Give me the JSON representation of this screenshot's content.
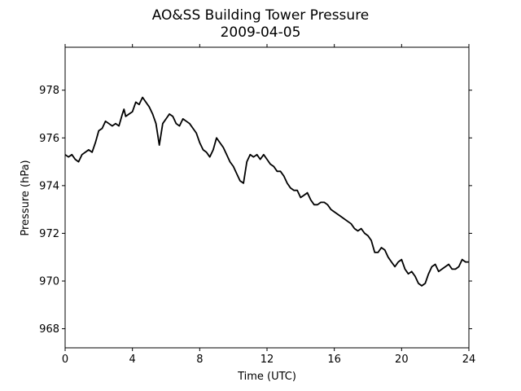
{
  "chart_data": {
    "type": "line",
    "title": [
      "AO&SS Building Tower Pressure",
      "2009-04-05"
    ],
    "xlabel": "Time (UTC)",
    "ylabel": "Pressure (hPa)",
    "xlim": [
      0,
      24
    ],
    "ylim": [
      967.2,
      979.8
    ],
    "xticks": [
      0,
      4,
      8,
      12,
      16,
      20,
      24
    ],
    "yticks": [
      968,
      970,
      972,
      974,
      976,
      978
    ],
    "grid": false,
    "line_color": "#000000",
    "series": [
      {
        "x": [
          0,
          0.2,
          0.4,
          0.6,
          0.8,
          1.0,
          1.2,
          1.4,
          1.6,
          1.8,
          2.0,
          2.2,
          2.4,
          2.6,
          2.8,
          3.0,
          3.2,
          3.4,
          3.5,
          3.6,
          3.8,
          4.0,
          4.2,
          4.4,
          4.6,
          4.8,
          5.0,
          5.2,
          5.4,
          5.6,
          5.8,
          6.0,
          6.2,
          6.4,
          6.6,
          6.8,
          7.0,
          7.2,
          7.4,
          7.6,
          7.8,
          8.0,
          8.2,
          8.4,
          8.6,
          8.8,
          9.0,
          9.2,
          9.4,
          9.6,
          9.8,
          10.0,
          10.2,
          10.4,
          10.6,
          10.8,
          11.0,
          11.2,
          11.4,
          11.6,
          11.8,
          12.0,
          12.2,
          12.4,
          12.6,
          12.8,
          13.0,
          13.2,
          13.4,
          13.6,
          13.8,
          14.0,
          14.2,
          14.4,
          14.6,
          14.8,
          15.0,
          15.2,
          15.4,
          15.6,
          15.8,
          16.0,
          16.2,
          16.4,
          16.6,
          16.8,
          17.0,
          17.2,
          17.4,
          17.6,
          17.8,
          18.0,
          18.2,
          18.4,
          18.6,
          18.8,
          19.0,
          19.2,
          19.4,
          19.6,
          19.8,
          20.0,
          20.2,
          20.4,
          20.6,
          20.8,
          21.0,
          21.2,
          21.4,
          21.6,
          21.8,
          22.0,
          22.2,
          22.4,
          22.6,
          22.8,
          23.0,
          23.2,
          23.4,
          23.6,
          23.8,
          24.0
        ],
        "y": [
          975.3,
          975.2,
          975.3,
          975.1,
          975.0,
          975.3,
          975.4,
          975.5,
          975.4,
          975.8,
          976.3,
          976.4,
          976.7,
          976.6,
          976.5,
          976.6,
          976.5,
          977.0,
          977.2,
          976.9,
          977.0,
          977.1,
          977.5,
          977.4,
          977.7,
          977.5,
          977.3,
          977.0,
          976.6,
          975.7,
          976.6,
          976.8,
          977.0,
          976.9,
          976.6,
          976.5,
          976.8,
          976.7,
          976.6,
          976.4,
          976.2,
          975.8,
          975.5,
          975.4,
          975.2,
          975.5,
          976.0,
          975.8,
          975.6,
          975.3,
          975.0,
          974.8,
          974.5,
          974.2,
          974.1,
          975.0,
          975.3,
          975.2,
          975.3,
          975.1,
          975.3,
          975.1,
          974.9,
          974.8,
          974.6,
          974.6,
          974.4,
          974.1,
          973.9,
          973.8,
          973.8,
          973.5,
          973.6,
          973.7,
          973.4,
          973.2,
          973.2,
          973.3,
          973.3,
          973.2,
          973.0,
          972.9,
          972.8,
          972.7,
          972.6,
          972.5,
          972.4,
          972.2,
          972.1,
          972.2,
          972.0,
          971.9,
          971.7,
          971.2,
          971.2,
          971.4,
          971.3,
          971.0,
          970.8,
          970.6,
          970.8,
          970.9,
          970.5,
          970.3,
          970.4,
          970.2,
          969.9,
          969.8,
          969.9,
          970.3,
          970.6,
          970.7,
          970.4,
          970.5,
          970.6,
          970.7,
          970.5,
          970.5,
          970.6,
          970.9,
          970.8,
          970.8
        ]
      }
    ]
  }
}
